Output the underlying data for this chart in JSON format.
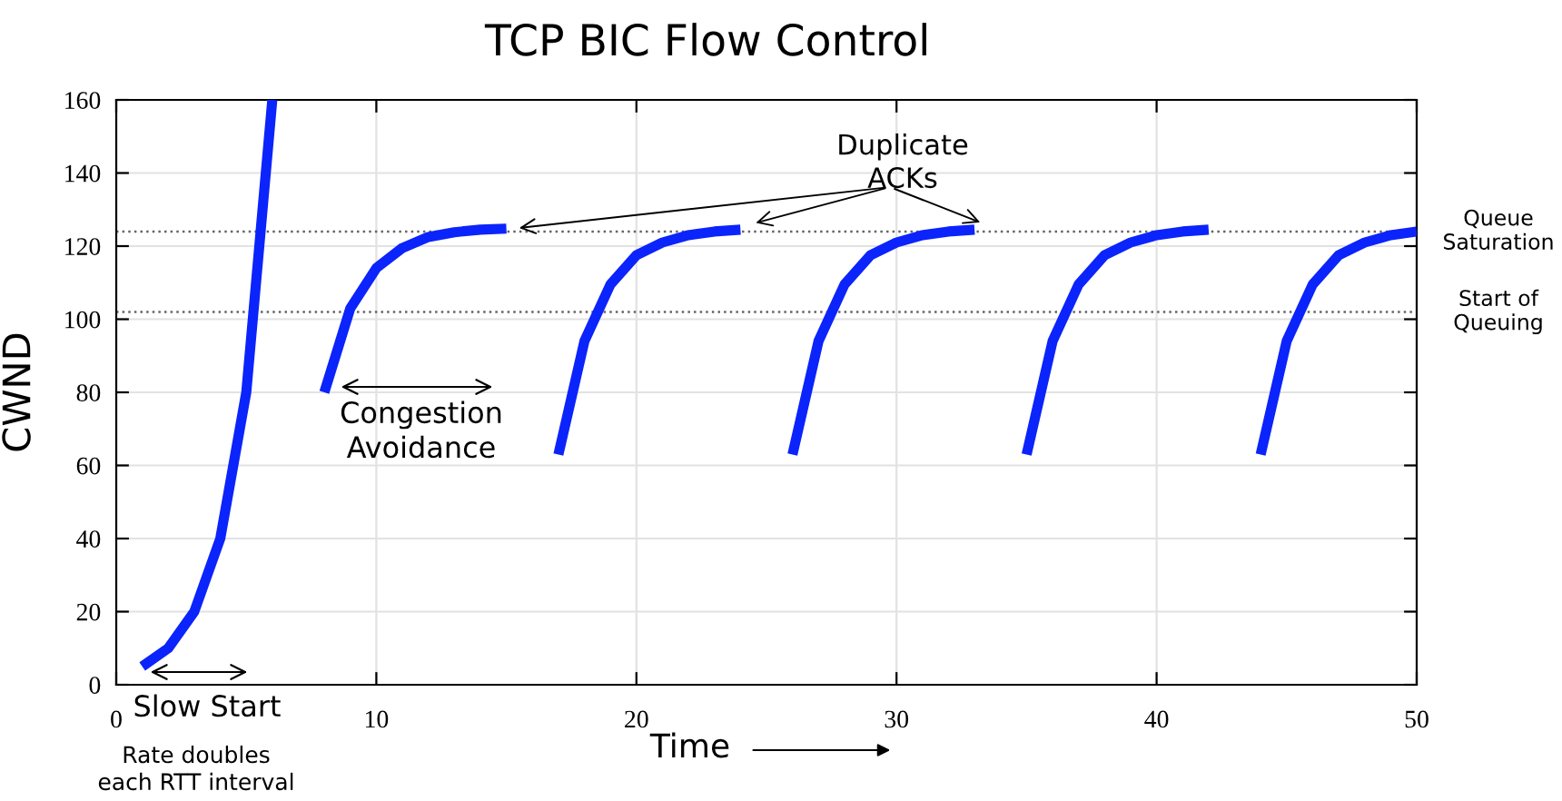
{
  "chart_data": {
    "type": "line",
    "title": "TCP BIC Flow Control",
    "xlabel": "Time",
    "ylabel": "CWND",
    "xlim": [
      0,
      50
    ],
    "xticks": [
      0,
      10,
      20,
      30,
      40,
      50
    ],
    "ylim": [
      0,
      160
    ],
    "yticks": [
      0,
      20,
      40,
      60,
      80,
      100,
      120,
      140,
      160
    ],
    "grid": true,
    "marker": "none",
    "line_style": "solid",
    "series": [
      {
        "color": "#0b24fb",
        "x": [
          1,
          2,
          3,
          4,
          5,
          6
        ],
        "values": [
          5,
          10,
          20,
          40,
          80,
          160
        ]
      },
      {
        "color": "#0b24fb",
        "x": [
          8,
          9,
          10,
          11,
          12,
          13,
          14,
          15
        ],
        "values": [
          80,
          103,
          114,
          119.5,
          122.5,
          123.8,
          124.5,
          124.8
        ]
      },
      {
        "color": "#0b24fb",
        "x": [
          17,
          18,
          19,
          20,
          21,
          22,
          23,
          24
        ],
        "values": [
          63,
          94,
          109.5,
          117.5,
          121,
          123,
          124,
          124.5
        ]
      },
      {
        "color": "#0b24fb",
        "x": [
          26,
          27,
          28,
          29,
          30,
          31,
          32,
          33
        ],
        "values": [
          63,
          94,
          109.5,
          117.5,
          121,
          123,
          124,
          124.5
        ]
      },
      {
        "color": "#0b24fb",
        "x": [
          35,
          36,
          37,
          38,
          39,
          40,
          41,
          42
        ],
        "values": [
          63,
          94,
          109.5,
          117.5,
          121,
          123,
          124,
          124.5
        ]
      },
      {
        "color": "#0b24fb",
        "x": [
          44,
          45,
          46,
          47,
          48,
          49,
          50
        ],
        "values": [
          63,
          94,
          109.5,
          117.5,
          121,
          123,
          124
        ]
      }
    ],
    "ref_lines": [
      {
        "axis": "y",
        "value": 124,
        "label": "Queue\nSaturation",
        "color": "#666666",
        "line_style": "dotted"
      },
      {
        "axis": "y",
        "value": 102,
        "label": "Start of\nQueuing",
        "color": "#666666",
        "line_style": "dotted"
      }
    ],
    "annotations": [
      {
        "text": "Duplicate\nACKs",
        "x": 15,
        "y": 124.8
      },
      "Congestion\nAvoidance",
      "Slow Start",
      "Rate doubles\neach RTT interval"
    ]
  }
}
